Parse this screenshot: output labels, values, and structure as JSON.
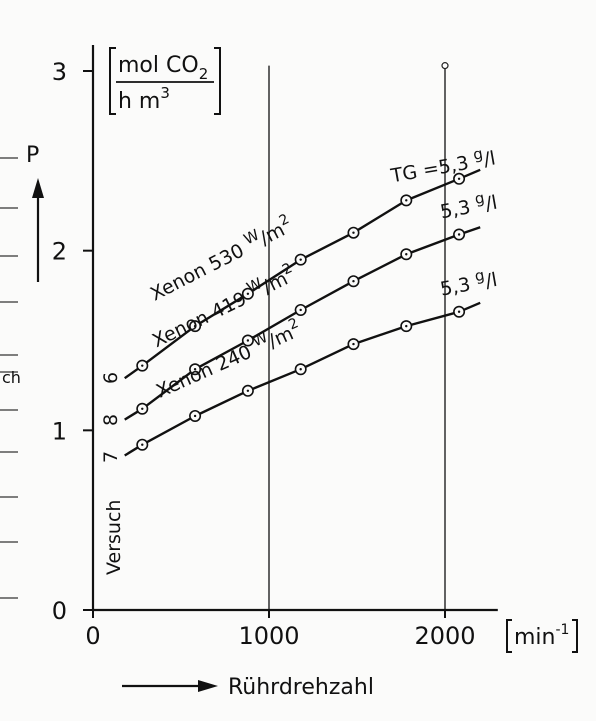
{
  "chart_data": {
    "type": "line",
    "xlabel": "Rührdrehzahl",
    "xunit": "min",
    "xunit_exp": "-1",
    "ylabel": "P",
    "yunit": {
      "numerator": "mol CO",
      "numerator_sub": "2",
      "denominator": "h m",
      "denominator_sup": "3"
    },
    "xlim": [
      0,
      2300
    ],
    "ylim": [
      0,
      3.15
    ],
    "xticks": [
      {
        "value": 0,
        "label": "0"
      },
      {
        "value": 1000,
        "label": "1000"
      },
      {
        "value": 2000,
        "label": "2000"
      }
    ],
    "yticks": [
      {
        "value": 0,
        "label": "0"
      },
      {
        "value": 1,
        "label": "1"
      },
      {
        "value": 2,
        "label": "2"
      },
      {
        "value": 3,
        "label": "3"
      }
    ],
    "grid": {
      "vertical_lines_at": [
        1000,
        2000
      ]
    },
    "versuch_label": "Versuch",
    "series": [
      {
        "name": "Xenon 530 W/m²",
        "label_main": "Xenon 530",
        "label_unit_num": "W",
        "label_unit_den": "m",
        "label_unit_exp": "2",
        "versuch": "6",
        "tg_prefix": "TG =",
        "tg_value": "5,3",
        "tg_unit_num": "g",
        "tg_unit_den": "l",
        "start": [
          180,
          1.29
        ],
        "x": [
          280,
          580,
          880,
          1180,
          1480,
          1780,
          2080
        ],
        "y": [
          1.36,
          1.58,
          1.76,
          1.95,
          2.1,
          2.28,
          2.4
        ],
        "end": [
          2200,
          2.45
        ]
      },
      {
        "name": "Xenon 419 W/m²",
        "label_main": "Xenon 419",
        "label_unit_num": "W",
        "label_unit_den": "m",
        "label_unit_exp": "2",
        "versuch": "8",
        "tg_prefix": "",
        "tg_value": "5,3",
        "tg_unit_num": "g",
        "tg_unit_den": "l",
        "start": [
          180,
          1.06
        ],
        "x": [
          280,
          580,
          880,
          1180,
          1480,
          1780,
          2080
        ],
        "y": [
          1.12,
          1.34,
          1.5,
          1.67,
          1.83,
          1.98,
          2.09
        ],
        "end": [
          2200,
          2.13
        ]
      },
      {
        "name": "Xenon 240 W/m²",
        "label_main": "Xenon 240",
        "label_unit_num": "W",
        "label_unit_den": "m",
        "label_unit_exp": "2",
        "versuch": "7",
        "tg_prefix": "",
        "tg_value": "5,3",
        "tg_unit_num": "g",
        "tg_unit_den": "l",
        "start": [
          180,
          0.86
        ],
        "x": [
          280,
          580,
          880,
          1180,
          1480,
          1780,
          2080
        ],
        "y": [
          0.92,
          1.08,
          1.22,
          1.34,
          1.48,
          1.58,
          1.66
        ],
        "end": [
          2200,
          1.71
        ]
      }
    ]
  },
  "left_margin": {
    "fragment_text": "ch"
  }
}
